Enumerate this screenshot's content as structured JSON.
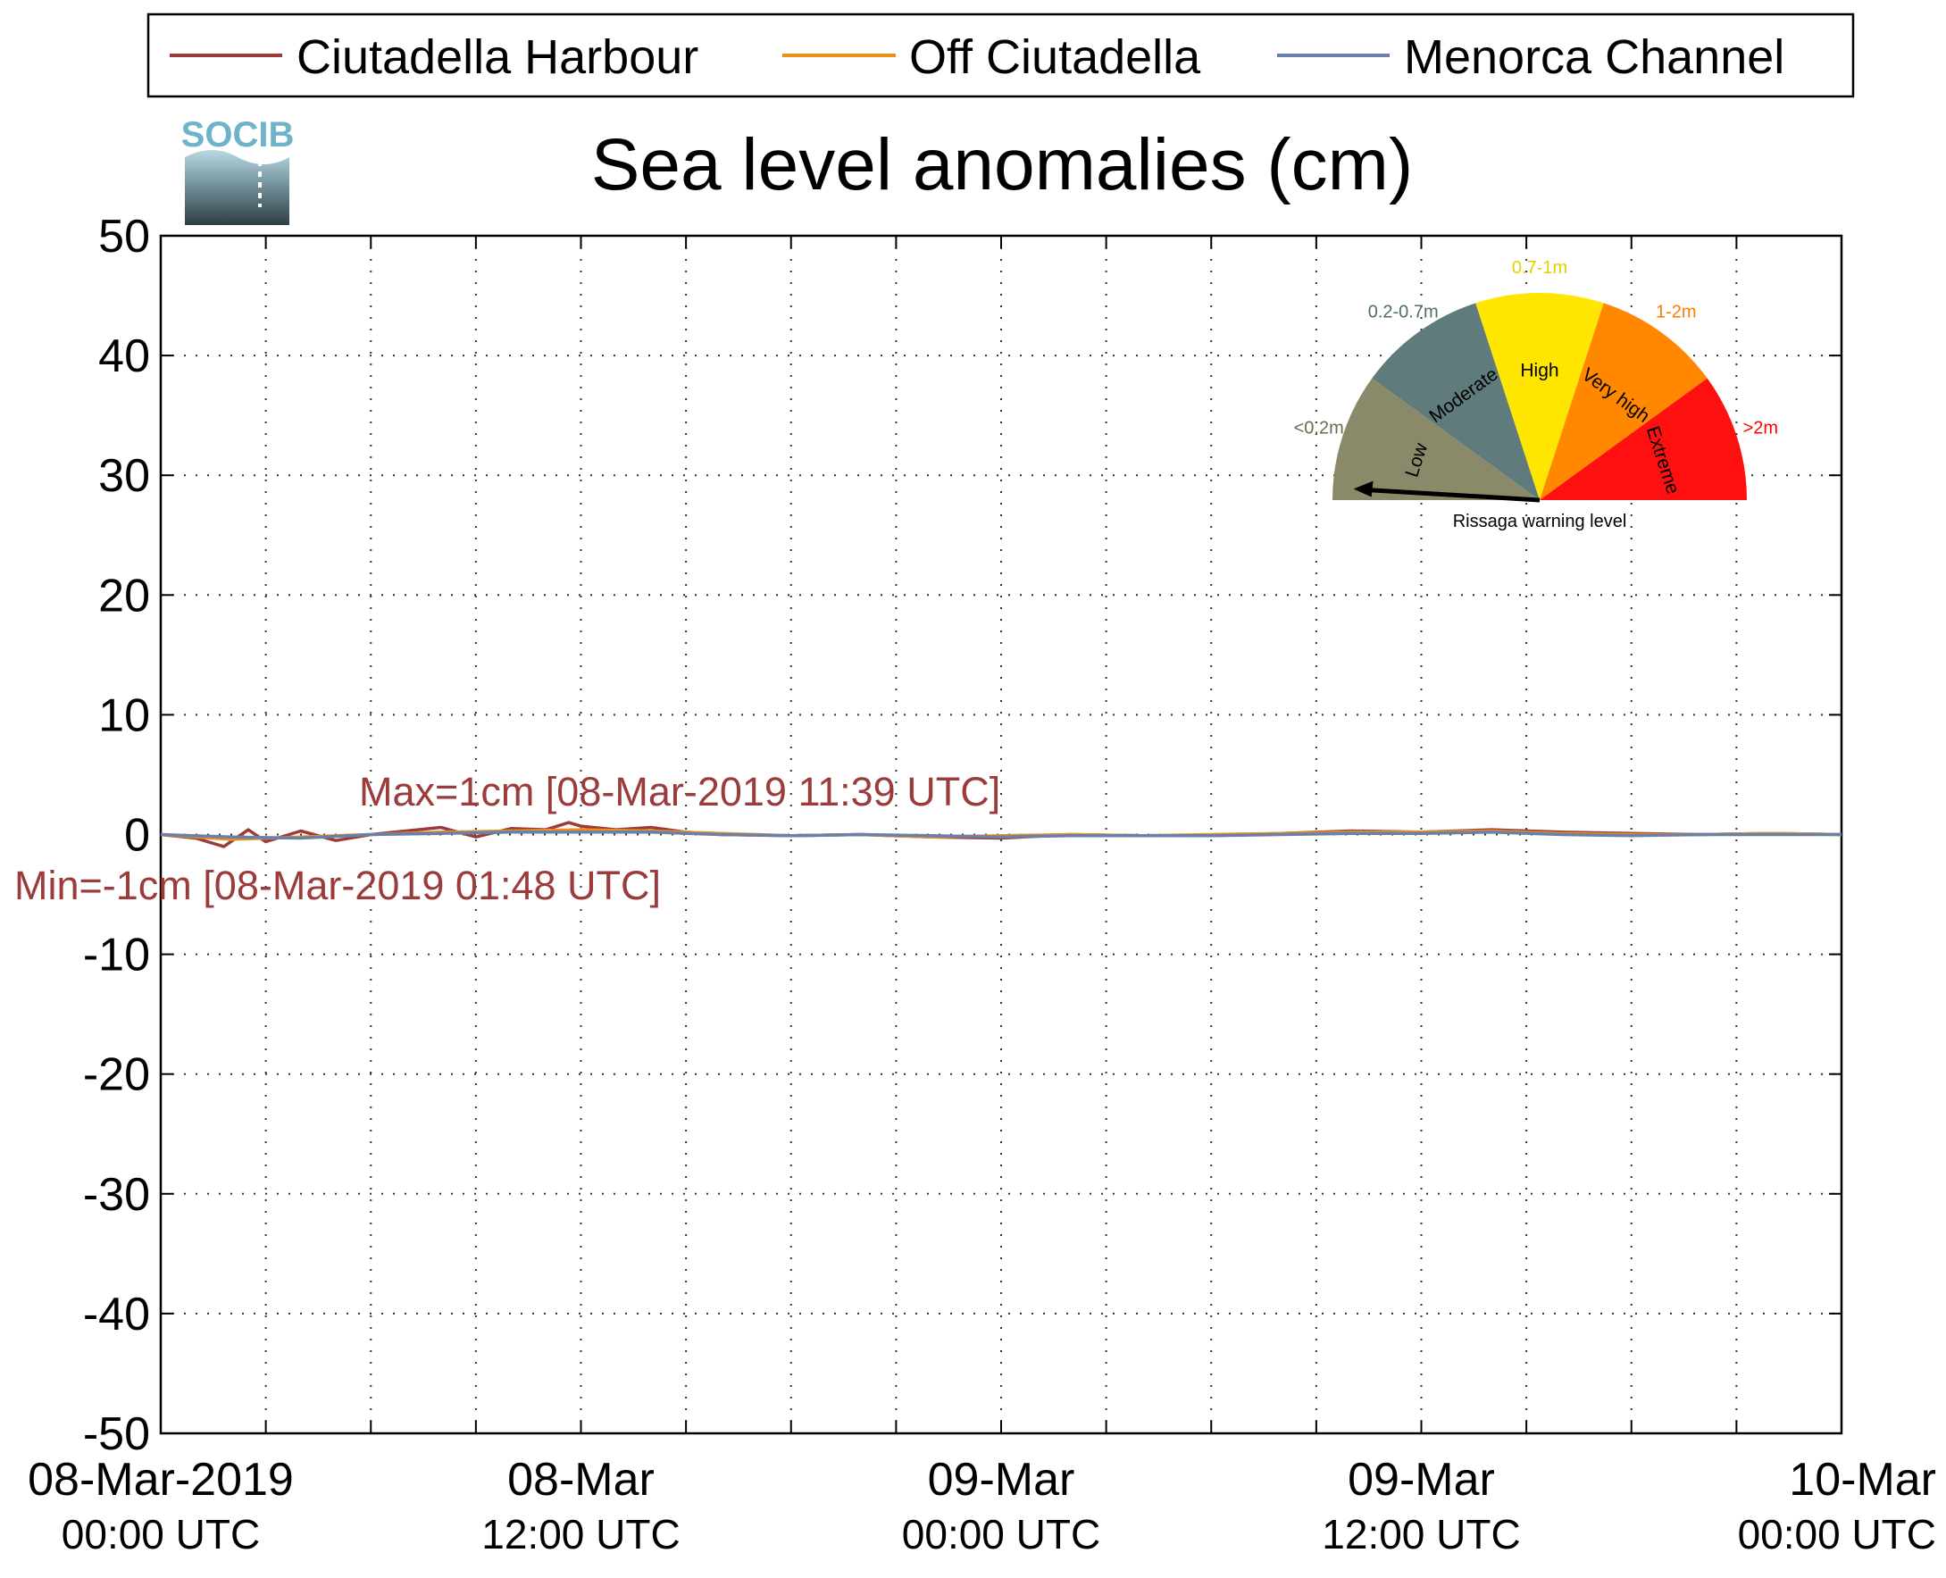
{
  "chart_data": {
    "type": "line",
    "title": "Sea level anomalies (cm)",
    "xlabel": "",
    "ylabel": "",
    "ylim": [
      -50,
      50
    ],
    "yticks": [
      -50,
      -40,
      -30,
      -20,
      -10,
      0,
      10,
      20,
      30,
      40,
      50
    ],
    "xlim_hours": [
      0,
      48
    ],
    "x_ticks": [
      {
        "hour": 0,
        "date": "08-Mar-2019",
        "time": "00:00 UTC"
      },
      {
        "hour": 12,
        "date": "08-Mar",
        "time": "12:00 UTC"
      },
      {
        "hour": 24,
        "date": "09-Mar",
        "time": "00:00 UTC"
      },
      {
        "hour": 36,
        "date": "09-Mar",
        "time": "12:00 UTC"
      },
      {
        "hour": 48,
        "date": "10-Mar",
        "time": "00:00 UTC"
      }
    ],
    "grid": true,
    "legend_position": "top",
    "series": [
      {
        "name": "Ciutadella Harbour",
        "color": "#9b3b3b",
        "x": [
          0,
          1,
          1.8,
          2.5,
          3,
          4,
          5,
          6,
          7,
          8,
          9,
          10,
          11,
          11.65,
          12,
          13,
          14,
          15,
          16,
          18,
          20,
          22,
          24,
          26,
          28,
          30,
          32,
          34,
          36,
          38,
          40,
          42,
          44,
          46,
          48
        ],
        "y": [
          0,
          -0.3,
          -1,
          0.4,
          -0.6,
          0.3,
          -0.5,
          0,
          0.3,
          0.6,
          -0.2,
          0.5,
          0.4,
          1,
          0.7,
          0.4,
          0.6,
          0.2,
          0,
          -0.1,
          0,
          -0.2,
          -0.3,
          0,
          -0.1,
          -0.1,
          0.1,
          0.3,
          0.2,
          0.4,
          0.2,
          0.1,
          0,
          0.1,
          0
        ]
      },
      {
        "name": "Off Ciutadella",
        "color": "#e8921a",
        "x": [
          0,
          2,
          4,
          6,
          8,
          10,
          12,
          14,
          16,
          18,
          20,
          22,
          24,
          26,
          28,
          30,
          32,
          34,
          36,
          38,
          40,
          42,
          44,
          46,
          48
        ],
        "y": [
          0,
          -0.4,
          -0.2,
          0,
          0.2,
          0.3,
          0.4,
          0.3,
          0.1,
          -0.1,
          0,
          -0.2,
          -0.1,
          0,
          -0.1,
          0,
          0.1,
          0.2,
          0.2,
          0.3,
          0.1,
          0,
          0,
          0.1,
          0
        ]
      },
      {
        "name": "Menorca Channel",
        "color": "#6b7fa8",
        "x": [
          0,
          2,
          4,
          6,
          8,
          10,
          12,
          14,
          16,
          18,
          20,
          22,
          24,
          26,
          28,
          30,
          32,
          34,
          36,
          38,
          40,
          42,
          44,
          46,
          48
        ],
        "y": [
          0,
          -0.2,
          -0.3,
          0,
          0.1,
          0.2,
          0.2,
          0.2,
          0,
          -0.1,
          0,
          -0.1,
          -0.2,
          -0.1,
          -0.1,
          -0.1,
          0,
          0.1,
          0.1,
          0.2,
          0,
          -0.1,
          0,
          0,
          0
        ]
      }
    ],
    "annotations": {
      "max": "Max=1cm [08-Mar-2019 11:39 UTC]",
      "min": "Min=-1cm [08-Mar-2019 01:48 UTC]",
      "color": "#9b3b3b"
    }
  },
  "logo": {
    "text": "SOCIB",
    "color": "#6fb3c8"
  },
  "gauge": {
    "caption": "Rissaga warning level",
    "pointer_level": "Low",
    "segments": [
      {
        "name": "Low",
        "range": "<0.2m",
        "color": "#8a8a6a",
        "range_color": "#6b6b4f"
      },
      {
        "name": "Moderate",
        "range": "0.2-0.7m",
        "color": "#5f7b7b",
        "range_color": "#4f6b6b"
      },
      {
        "name": "High",
        "range": "0.7-1m",
        "color": "#ffe600",
        "range_color": "#e6cf00"
      },
      {
        "name": "Very high",
        "range": "1-2m",
        "color": "#ff8800",
        "range_color": "#ff7a00"
      },
      {
        "name": "Extreme",
        "range": ">2m",
        "color": "#ff1010",
        "range_color": "#ff0000"
      }
    ]
  }
}
